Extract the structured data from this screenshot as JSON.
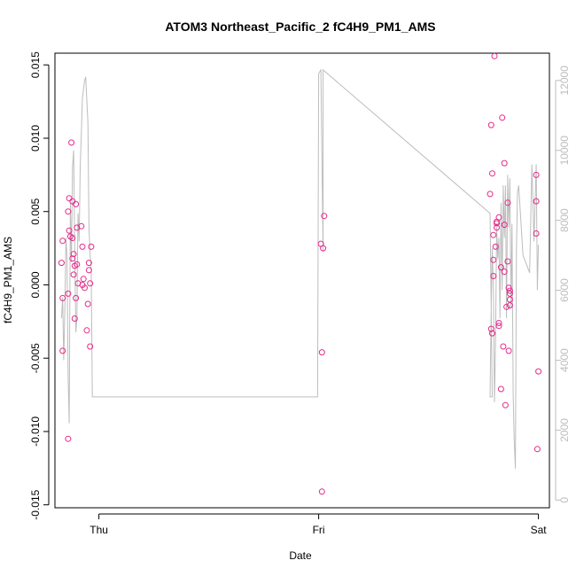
{
  "chart_data": {
    "type": "scatter",
    "title": "ATOM3 Northeast_Pacific_2 fC4H9_PM1_AMS",
    "xlabel": "Date",
    "ylabel": "fC4H9_PM1_AMS",
    "x_ticks": [
      {
        "value": 0.0,
        "label": "Thu"
      },
      {
        "value": 1.0,
        "label": "Fri"
      },
      {
        "value": 2.0,
        "label": "Sat"
      }
    ],
    "xlim": [
      -0.2,
      2.05
    ],
    "ylim": [
      -0.0152,
      0.0158
    ],
    "y_ticks": [
      {
        "value": -0.015,
        "label": "-0.015"
      },
      {
        "value": -0.01,
        "label": "-0.010"
      },
      {
        "value": -0.005,
        "label": "-0.005"
      },
      {
        "value": 0.0,
        "label": "0.000"
      },
      {
        "value": 0.005,
        "label": "0.005"
      },
      {
        "value": 0.01,
        "label": "0.010"
      },
      {
        "value": 0.015,
        "label": "0.015"
      }
    ],
    "y2lim": [
      -220,
      12780
    ],
    "y2_ticks": [
      {
        "value": 0,
        "label": "0"
      },
      {
        "value": 2000,
        "label": "2000"
      },
      {
        "value": 4000,
        "label": "4000"
      },
      {
        "value": 6000,
        "label": "6000"
      },
      {
        "value": 8000,
        "label": "8000"
      },
      {
        "value": 10000,
        "label": "10000"
      },
      {
        "value": 12000,
        "label": "12000"
      }
    ],
    "colors": {
      "points": "#e7298a",
      "line": "#bdbdbd",
      "axis": "#000000"
    },
    "series": [
      {
        "type": "scatter",
        "axis": "left",
        "points": [
          [
            -0.17,
            0.0015
          ],
          [
            -0.165,
            -0.0009
          ],
          [
            -0.165,
            0.003
          ],
          [
            -0.165,
            -0.0045
          ],
          [
            -0.14,
            0.005
          ],
          [
            -0.14,
            -0.0006
          ],
          [
            -0.14,
            -0.0105
          ],
          [
            -0.135,
            0.0059
          ],
          [
            -0.135,
            0.0037
          ],
          [
            -0.13,
            0.0033
          ],
          [
            -0.125,
            0.0097
          ],
          [
            -0.12,
            0.0057
          ],
          [
            -0.12,
            0.0032
          ],
          [
            -0.12,
            0.0018
          ],
          [
            -0.115,
            0.0021
          ],
          [
            -0.115,
            0.0007
          ],
          [
            -0.11,
            -0.0023
          ],
          [
            -0.11,
            0.0013
          ],
          [
            -0.105,
            0.0055
          ],
          [
            -0.105,
            -0.0009
          ],
          [
            -0.1,
            0.0039
          ],
          [
            -0.1,
            0.0014
          ],
          [
            -0.095,
            0.0001
          ],
          [
            -0.08,
            0.004
          ],
          [
            -0.075,
            0.0026
          ],
          [
            -0.075,
            0.0
          ],
          [
            -0.07,
            0.0004
          ],
          [
            -0.065,
            -0.0002
          ],
          [
            -0.055,
            -0.0031
          ],
          [
            -0.05,
            -0.0013
          ],
          [
            -0.045,
            0.0015
          ],
          [
            -0.045,
            0.001
          ],
          [
            -0.04,
            0.0001
          ],
          [
            -0.04,
            -0.0042
          ],
          [
            -0.035,
            0.0026
          ],
          [
            1.01,
            0.0028
          ],
          [
            1.015,
            -0.0046
          ],
          [
            1.015,
            -0.0141
          ],
          [
            1.02,
            0.0025
          ],
          [
            1.025,
            0.0047
          ],
          [
            1.78,
            0.0062
          ],
          [
            1.785,
            0.0109
          ],
          [
            1.785,
            -0.003
          ],
          [
            1.79,
            0.0076
          ],
          [
            1.79,
            -0.0033
          ],
          [
            1.795,
            0.0034
          ],
          [
            1.795,
            0.0017
          ],
          [
            1.795,
            0.0006
          ],
          [
            1.8,
            0.0156
          ],
          [
            1.805,
            0.0026
          ],
          [
            1.81,
            0.0043
          ],
          [
            1.81,
            0.0042
          ],
          [
            1.81,
            0.0039
          ],
          [
            1.82,
            0.0046
          ],
          [
            1.82,
            -0.0026
          ],
          [
            1.82,
            -0.0028
          ],
          [
            1.83,
            0.0012
          ],
          [
            1.83,
            -0.0071
          ],
          [
            1.835,
            0.0114
          ],
          [
            1.84,
            -0.0042
          ],
          [
            1.845,
            0.0083
          ],
          [
            1.845,
            0.0041
          ],
          [
            1.845,
            0.0009
          ],
          [
            1.85,
            -0.0082
          ],
          [
            1.855,
            -0.0015
          ],
          [
            1.86,
            0.0056
          ],
          [
            1.86,
            0.0016
          ],
          [
            1.865,
            -0.0045
          ],
          [
            1.865,
            -0.0002
          ],
          [
            1.87,
            -0.0006
          ],
          [
            1.87,
            -0.001
          ],
          [
            1.87,
            -0.0014
          ],
          [
            1.87,
            -0.0004
          ],
          [
            1.99,
            0.0075
          ],
          [
            1.99,
            0.0057
          ],
          [
            1.99,
            0.0035
          ],
          [
            1.995,
            -0.0112
          ],
          [
            2.0,
            -0.0059
          ]
        ]
      },
      {
        "type": "line",
        "axis": "right",
        "points": [
          [
            -0.17,
            5200
          ],
          [
            -0.165,
            5800
          ],
          [
            -0.16,
            4000
          ],
          [
            -0.155,
            5500
          ],
          [
            -0.15,
            7500
          ],
          [
            -0.145,
            7000
          ],
          [
            -0.14,
            3500
          ],
          [
            -0.135,
            2200
          ],
          [
            -0.13,
            8500
          ],
          [
            -0.125,
            6800
          ],
          [
            -0.12,
            9500
          ],
          [
            -0.115,
            10000
          ],
          [
            -0.11,
            7200
          ],
          [
            -0.105,
            4800
          ],
          [
            -0.1,
            5200
          ],
          [
            -0.095,
            8200
          ],
          [
            -0.09,
            7400
          ],
          [
            -0.085,
            9500
          ],
          [
            -0.08,
            10500
          ],
          [
            -0.075,
            11500
          ],
          [
            -0.065,
            12000
          ],
          [
            -0.06,
            12100
          ],
          [
            -0.05,
            10800
          ],
          [
            -0.045,
            7800
          ],
          [
            -0.04,
            7000
          ],
          [
            -0.035,
            6600
          ],
          [
            -0.03,
            2950
          ],
          [
            0.995,
            2950
          ],
          [
            1.0,
            12200
          ],
          [
            1.01,
            12300
          ],
          [
            1.01,
            12300
          ],
          [
            1.02,
            7100
          ],
          [
            1.02,
            12300
          ],
          [
            1.78,
            8200
          ],
          [
            1.79,
            2950
          ],
          [
            1.78,
            2950
          ],
          [
            1.785,
            5500
          ],
          [
            1.79,
            7200
          ],
          [
            1.795,
            6000
          ],
          [
            1.8,
            2800
          ],
          [
            1.805,
            4500
          ],
          [
            1.81,
            7800
          ],
          [
            1.815,
            6900
          ],
          [
            1.82,
            7500
          ],
          [
            1.825,
            5200
          ],
          [
            1.83,
            8500
          ],
          [
            1.835,
            6000
          ],
          [
            1.84,
            9000
          ],
          [
            1.845,
            7500
          ],
          [
            1.85,
            9000
          ],
          [
            1.855,
            5200
          ],
          [
            1.86,
            9300
          ],
          [
            1.865,
            7800
          ],
          [
            1.87,
            9200
          ],
          [
            1.875,
            5500
          ],
          [
            1.88,
            7900
          ],
          [
            1.885,
            3000
          ],
          [
            1.89,
            1700
          ],
          [
            1.895,
            900
          ],
          [
            1.9,
            7200
          ],
          [
            1.905,
            8800
          ],
          [
            1.91,
            9000
          ],
          [
            1.93,
            7000
          ],
          [
            1.96,
            6500
          ],
          [
            1.97,
            9600
          ],
          [
            1.98,
            7400
          ],
          [
            1.99,
            9600
          ],
          [
            1.995,
            6000
          ],
          [
            2.0,
            7300
          ]
        ]
      }
    ]
  }
}
